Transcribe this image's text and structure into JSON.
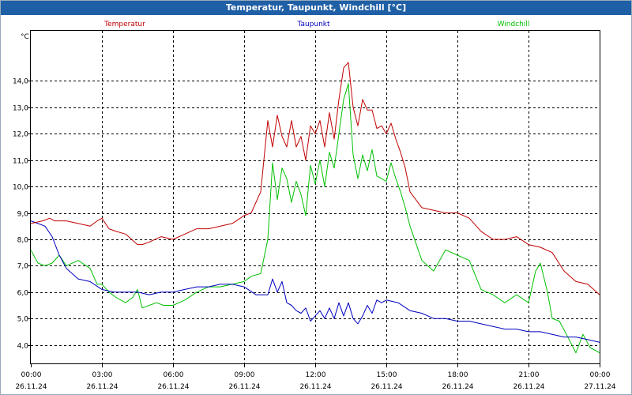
{
  "window": {
    "title": "Temperatur, Taupunkt, Windchill [°C]"
  },
  "chart_data": {
    "type": "line",
    "title": "Temperatur, Taupunkt, Windchill [°C]",
    "ylabel": "°C",
    "ylim": [
      3.3,
      15.9
    ],
    "y_ticks": [
      "4,0",
      "5,0",
      "6,0",
      "7,0",
      "8,0",
      "9,0",
      "10,0",
      "11,0",
      "12,0",
      "13,0",
      "14,0"
    ],
    "xlim": [
      0,
      24
    ],
    "x_ticks": [
      {
        "time": "00:00",
        "date": "26.11.24"
      },
      {
        "time": "03:00",
        "date": "26.11.24"
      },
      {
        "time": "06:00",
        "date": "26.11.24"
      },
      {
        "time": "09:00",
        "date": "26.11.24"
      },
      {
        "time": "12:00",
        "date": "26.11.24"
      },
      {
        "time": "15:00",
        "date": "26.11.24"
      },
      {
        "time": "18:00",
        "date": "26.11.24"
      },
      {
        "time": "21:00",
        "date": "26.11.24"
      },
      {
        "time": "00:00",
        "date": "27.11.24"
      }
    ],
    "grid": true,
    "series": [
      {
        "name": "Temperatur",
        "color": "#c00000",
        "x": [
          0,
          0.5,
          0.8,
          1,
          1.5,
          2,
          2.5,
          2.8,
          3,
          3.3,
          3.6,
          4,
          4.5,
          4.7,
          5,
          5.5,
          6,
          6.5,
          7,
          7.5,
          8,
          8.5,
          9,
          9.3,
          9.7,
          10,
          10.2,
          10.4,
          10.6,
          10.8,
          11,
          11.2,
          11.4,
          11.6,
          11.8,
          12,
          12.2,
          12.4,
          12.6,
          12.8,
          13,
          13.2,
          13.4,
          13.6,
          13.8,
          14,
          14.2,
          14.4,
          14.6,
          14.8,
          15,
          15.2,
          15.4,
          15.6,
          15.8,
          16,
          16.5,
          17,
          17.5,
          18,
          18.5,
          19,
          19.5,
          20,
          20.5,
          21,
          21.5,
          22,
          22.5,
          23,
          23.5,
          24
        ],
        "values": [
          8.6,
          8.7,
          8.8,
          8.7,
          8.7,
          8.6,
          8.5,
          8.7,
          8.8,
          8.4,
          8.3,
          8.2,
          7.8,
          7.8,
          7.9,
          8.1,
          8.0,
          8.2,
          8.4,
          8.4,
          8.5,
          8.6,
          8.9,
          9.0,
          9.8,
          12.5,
          11.5,
          12.7,
          11.9,
          11.5,
          12.5,
          11.5,
          11.9,
          11.0,
          12.3,
          12.0,
          12.5,
          11.5,
          12.8,
          11.8,
          13.3,
          14.5,
          14.7,
          13.0,
          12.3,
          13.3,
          12.9,
          12.9,
          12.2,
          12.3,
          12.0,
          12.4,
          11.8,
          11.3,
          10.7,
          9.8,
          9.2,
          9.1,
          9.0,
          9.0,
          8.8,
          8.3,
          8.0,
          8.0,
          8.1,
          7.8,
          7.7,
          7.5,
          6.8,
          6.4,
          6.3,
          5.9
        ]
      },
      {
        "name": "Taupunkt",
        "color": "#0000c0",
        "x": [
          0,
          0.3,
          0.6,
          0.9,
          1.2,
          1.5,
          2,
          2.5,
          3,
          3.5,
          4,
          4.5,
          5,
          5.5,
          6,
          6.5,
          7,
          7.5,
          8,
          8.5,
          9,
          9.5,
          10,
          10.2,
          10.4,
          10.6,
          10.8,
          11,
          11.2,
          11.4,
          11.6,
          11.8,
          12,
          12.2,
          12.4,
          12.6,
          12.8,
          13,
          13.2,
          13.4,
          13.6,
          13.8,
          14,
          14.2,
          14.4,
          14.6,
          14.8,
          15,
          15.5,
          16,
          16.5,
          17,
          17.5,
          18,
          18.5,
          19,
          19.5,
          20,
          20.5,
          21,
          21.5,
          22,
          22.5,
          23,
          23.5,
          24
        ],
        "values": [
          8.7,
          8.6,
          8.5,
          8.1,
          7.4,
          6.9,
          6.5,
          6.4,
          6.1,
          6.0,
          6.0,
          6.0,
          5.9,
          6.0,
          6.0,
          6.1,
          6.2,
          6.2,
          6.3,
          6.3,
          6.2,
          5.9,
          5.9,
          6.5,
          6.0,
          6.4,
          5.6,
          5.5,
          5.3,
          5.2,
          5.4,
          4.9,
          5.1,
          5.3,
          5.0,
          5.4,
          5.0,
          5.6,
          5.1,
          5.6,
          5.0,
          4.8,
          5.1,
          5.5,
          5.2,
          5.7,
          5.6,
          5.7,
          5.6,
          5.3,
          5.2,
          5.0,
          5.0,
          4.9,
          4.9,
          4.8,
          4.7,
          4.6,
          4.6,
          4.5,
          4.5,
          4.4,
          4.3,
          4.3,
          4.2,
          4.1
        ]
      },
      {
        "name": "Windchill",
        "color": "#00c000",
        "x": [
          0,
          0.3,
          0.6,
          0.9,
          1.2,
          1.5,
          2,
          2.5,
          2.8,
          3,
          3.3,
          3.6,
          4,
          4.3,
          4.5,
          4.7,
          5,
          5.3,
          5.6,
          6,
          6.5,
          7,
          7.5,
          8,
          8.5,
          9,
          9.3,
          9.7,
          10,
          10.2,
          10.4,
          10.6,
          10.8,
          11,
          11.2,
          11.4,
          11.6,
          11.8,
          12,
          12.2,
          12.4,
          12.6,
          12.8,
          13,
          13.2,
          13.4,
          13.6,
          13.8,
          14,
          14.2,
          14.4,
          14.6,
          14.8,
          15,
          15.2,
          15.4,
          15.6,
          15.8,
          16,
          16.5,
          17,
          17.5,
          18,
          18.5,
          19,
          19.5,
          20,
          20.5,
          21,
          21.3,
          21.5,
          21.8,
          22,
          22.3,
          22.6,
          23,
          23.3,
          23.6,
          24
        ],
        "values": [
          7.6,
          7.1,
          7.0,
          7.1,
          7.4,
          7.0,
          7.2,
          6.9,
          6.3,
          6.3,
          6.0,
          5.8,
          5.6,
          5.8,
          6.1,
          5.4,
          5.5,
          5.6,
          5.5,
          5.5,
          5.7,
          6.0,
          6.2,
          6.2,
          6.3,
          6.4,
          6.6,
          6.7,
          8.0,
          10.9,
          9.5,
          10.7,
          10.3,
          9.4,
          10.2,
          9.7,
          8.9,
          10.8,
          10.1,
          11.0,
          10.0,
          11.3,
          10.7,
          12.0,
          13.3,
          13.9,
          11.2,
          10.3,
          11.2,
          10.6,
          11.4,
          10.4,
          10.3,
          10.2,
          10.9,
          10.3,
          9.8,
          9.2,
          8.5,
          7.2,
          6.8,
          7.6,
          7.4,
          7.2,
          6.1,
          5.9,
          5.6,
          5.9,
          5.6,
          6.8,
          7.1,
          6.0,
          5.0,
          4.9,
          4.4,
          3.7,
          4.4,
          3.9,
          3.7
        ]
      }
    ]
  }
}
